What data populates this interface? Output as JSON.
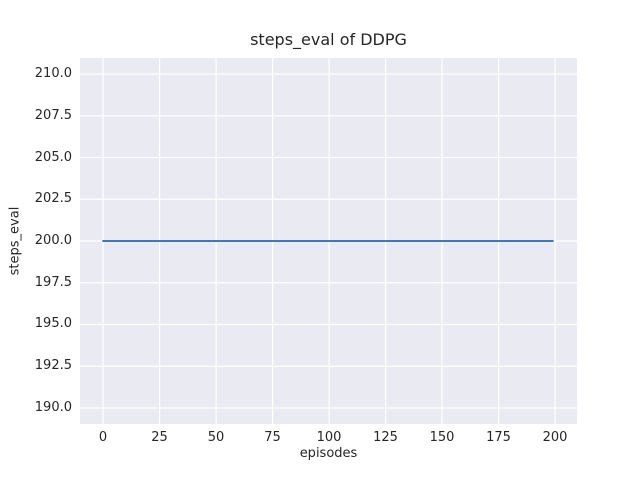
{
  "chart_data": {
    "type": "line",
    "title": "steps_eval of DDPG",
    "xlabel": "episodes",
    "ylabel": "steps_eval",
    "xlim": [
      -10.2,
      209.7
    ],
    "ylim": [
      189.04,
      210.96
    ],
    "xticks": [
      0,
      25,
      50,
      75,
      100,
      125,
      150,
      175,
      200
    ],
    "xtick_labels": [
      "0",
      "25",
      "50",
      "75",
      "100",
      "125",
      "150",
      "175",
      "200"
    ],
    "yticks": [
      190.0,
      192.5,
      195.0,
      197.5,
      200.0,
      202.5,
      205.0,
      207.5,
      210.0
    ],
    "ytick_labels": [
      "190.0",
      "192.5",
      "195.0",
      "197.5",
      "200.0",
      "202.5",
      "205.0",
      "207.5",
      "210.0"
    ],
    "grid": true,
    "legend_position": "none",
    "series": [
      {
        "name": "DDPG steps_eval",
        "constant_value": 200.0,
        "x": [
          0,
          199
        ],
        "y": [
          200.0,
          200.0
        ],
        "color": "#4C72B0",
        "line_width": 2
      }
    ],
    "colors": {
      "figure_background": "#FFFFFF",
      "axes_background": "#EAEAF2",
      "grid": "#FFFFFF",
      "text": "#262626"
    }
  }
}
